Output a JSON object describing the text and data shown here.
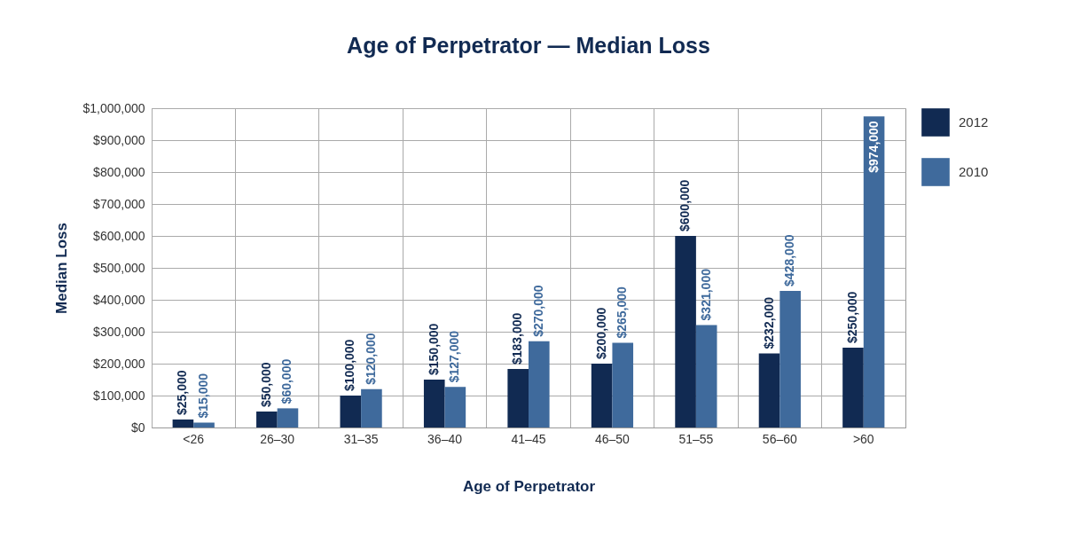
{
  "chart_data": {
    "type": "bar",
    "title": "Age of Perpetrator — Median Loss",
    "xlabel": "Age of Perpetrator",
    "ylabel": "Median Loss",
    "categories": [
      "<26",
      "26–30",
      "31–35",
      "36–40",
      "41–45",
      "46–50",
      "51–55",
      "56–60",
      ">60"
    ],
    "series": [
      {
        "name": "2012",
        "color": "#112a52",
        "values": [
          25000,
          50000,
          100000,
          150000,
          183000,
          200000,
          600000,
          232000,
          250000
        ],
        "value_labels": [
          "$25,000",
          "$50,000",
          "$100,000",
          "$150,000",
          "$183,000",
          "$200,000",
          "$600,000",
          "$232,000",
          "$250,000"
        ]
      },
      {
        "name": "2010",
        "color": "#3f6a9c",
        "values": [
          15000,
          60000,
          120000,
          127000,
          270000,
          265000,
          321000,
          428000,
          974000
        ],
        "value_labels": [
          "$15,000",
          "$60,000",
          "$120,000",
          "$127,000",
          "$270,000",
          "$265,000",
          "$321,000",
          "$428,000",
          "$974,000"
        ]
      }
    ],
    "ylim": [
      0,
      1000000
    ],
    "yticks": [
      {
        "value": 0,
        "label": "$0"
      },
      {
        "value": 100000,
        "label": "$100,000"
      },
      {
        "value": 200000,
        "label": "$200,000"
      },
      {
        "value": 300000,
        "label": "$300,000"
      },
      {
        "value": 400000,
        "label": "$400,000"
      },
      {
        "value": 500000,
        "label": "$500,000"
      },
      {
        "value": 600000,
        "label": "$600,000"
      },
      {
        "value": 700000,
        "label": "$700,000"
      },
      {
        "value": 800000,
        "label": "$800,000"
      },
      {
        "value": 900000,
        "label": "$900,000"
      },
      {
        "value": 1000000,
        "label": "$1,000,000"
      }
    ],
    "grid": true,
    "legend": "top right"
  }
}
